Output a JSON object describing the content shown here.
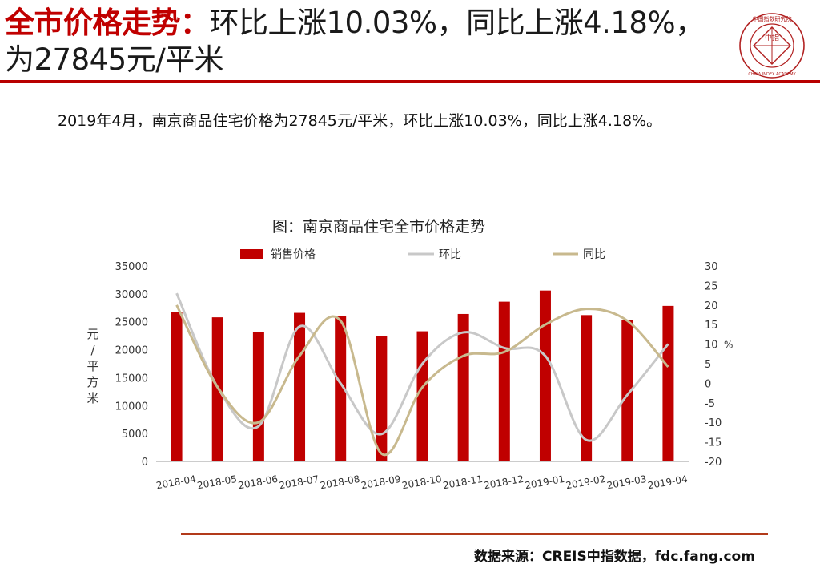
{
  "header": {
    "title_red": "全市价格走势：",
    "title_black": "环比上涨10.03%，同比上涨4.18%，为27845元/平米"
  },
  "logo": {
    "org_name": "中国指数研究院",
    "org_name_en": "CHINA INDEX ACADEMY",
    "center_text": "中指",
    "color": "#b22222"
  },
  "summary": "2019年4月，南京商品住宅价格为27845元/平米，环比上涨10.03%，同比上涨4.18%。",
  "footer": {
    "source": "数据来源：CREIS中指数据，fdc.fang.com"
  },
  "chart_data": {
    "type": "bar",
    "title": "图：南京商品住宅全市价格走势",
    "categories": [
      "2018-04",
      "2018-05",
      "2018-06",
      "2018-07",
      "2018-08",
      "2018-09",
      "2018-10",
      "2018-11",
      "2018-12",
      "2019-01",
      "2019-02",
      "2019-03",
      "2019-04"
    ],
    "ylabel_left": "元/平方米",
    "ylabel_right": "%",
    "ylim_left": [
      0,
      35000
    ],
    "yticks_left": [
      0,
      5000,
      10000,
      15000,
      20000,
      25000,
      30000,
      35000
    ],
    "ylim_right": [
      -20,
      30
    ],
    "yticks_right": [
      -20,
      -15,
      -10,
      -5,
      0,
      5,
      10,
      15,
      20,
      25,
      30
    ],
    "legend_position": "top",
    "grid": false,
    "series": [
      {
        "name": "销售价格",
        "type": "bar",
        "axis": "left",
        "color": "#c00000",
        "values": [
          26700,
          25800,
          23100,
          26600,
          26000,
          22500,
          23300,
          26400,
          28600,
          30600,
          26200,
          25300,
          27845
        ]
      },
      {
        "name": "环比",
        "type": "line",
        "axis": "right",
        "color": "#c8c8c8",
        "values": [
          23,
          -1,
          -11,
          14.5,
          0,
          -13,
          5,
          13,
          9,
          7,
          -14.5,
          -3,
          10.03
        ]
      },
      {
        "name": "同比",
        "type": "line",
        "axis": "right",
        "color": "#c8b98e",
        "values": [
          20,
          -1,
          -10,
          7,
          16,
          -18,
          -1,
          7,
          8,
          15,
          19,
          16,
          4.18
        ]
      }
    ]
  }
}
